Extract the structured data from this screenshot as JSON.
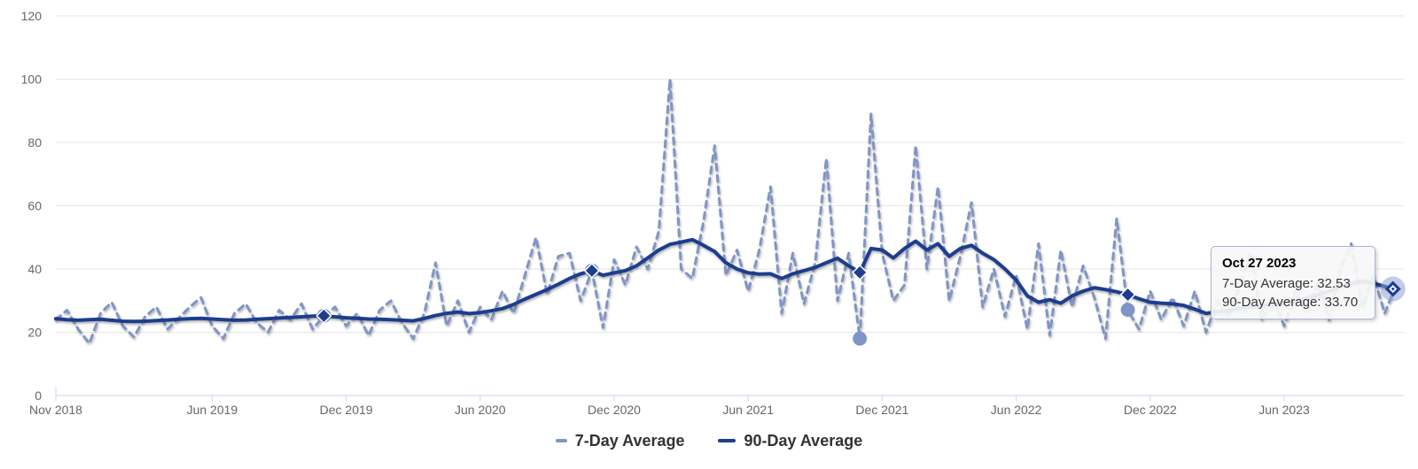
{
  "chart": {
    "tooltip": {
      "title": "Oct 27 2023",
      "line1": "7-Day Average: 32.53",
      "line2": "90-Day Average: 33.70"
    },
    "legend": [
      {
        "label": "7-Day Average",
        "color": "#8095c7",
        "dash": "short"
      },
      {
        "label": "90-Day Average",
        "color": "#1f3d8f",
        "dash": "solid"
      }
    ],
    "colors": {
      "series_7day": "#8095c7",
      "series_90day": "#1f3d8f",
      "gridline": "#e6e6e6",
      "axis_line": "#ccd6eb",
      "tick_label": "#666666",
      "legend_text": "#333333",
      "hover_halo": "#8ea2d2"
    }
  },
  "chart_data": {
    "type": "line",
    "title": "",
    "xlabel": "",
    "ylabel": "",
    "grid": true,
    "legend_position": "bottom-center",
    "ylim": [
      0,
      120
    ],
    "y_ticks": [
      0,
      20,
      40,
      60,
      80,
      100,
      120
    ],
    "x_unit": "months since Nov 2018",
    "x_ticks": [
      {
        "month": 0,
        "label": "Nov 2018"
      },
      {
        "month": 7,
        "label": "Jun 2019"
      },
      {
        "month": 13,
        "label": "Dec 2019"
      },
      {
        "month": 19,
        "label": "Jun 2020"
      },
      {
        "month": 25,
        "label": "Dec 2020"
      },
      {
        "month": 31,
        "label": "Jun 2021"
      },
      {
        "month": 37,
        "label": "Dec 2021"
      },
      {
        "month": 43,
        "label": "Jun 2022"
      },
      {
        "month": 49,
        "label": "Dec 2022"
      },
      {
        "month": 55,
        "label": "Jun 2023"
      }
    ],
    "series": [
      {
        "name": "7-Day Average",
        "style": "dashed",
        "color": "#8095c7",
        "x_start": 0,
        "x_step": 0.5,
        "values": [
          24,
          27,
          21,
          16.5,
          26,
          29.5,
          22,
          18.5,
          25,
          28,
          21,
          24.5,
          28,
          31,
          22,
          18,
          26,
          29,
          23,
          20,
          27,
          24,
          29,
          21,
          25.2,
          28,
          22,
          26,
          19,
          27,
          30,
          23,
          18,
          26,
          42,
          22,
          30,
          20,
          28,
          24,
          33,
          26,
          38,
          50,
          32,
          44,
          45,
          30,
          39.5,
          21.5,
          43,
          35,
          47,
          40,
          52,
          100,
          40,
          37,
          55,
          79,
          38,
          46,
          33,
          46,
          66,
          26,
          45,
          29,
          42,
          75,
          30,
          45,
          18,
          89,
          45,
          30,
          35,
          79,
          40,
          66,
          30,
          44,
          61,
          28,
          40,
          25,
          38,
          21,
          48,
          19,
          46,
          28,
          41,
          31,
          18,
          56,
          27,
          21,
          33,
          24,
          31,
          22,
          33,
          20,
          30,
          25,
          35,
          45,
          24,
          31,
          22,
          33,
          26,
          36,
          24,
          40,
          48,
          28,
          38,
          26
        ],
        "end_point": [
          59.87,
          32.53
        ]
      },
      {
        "name": "90-Day Average",
        "style": "solid",
        "color": "#1f3d8f",
        "x_start": 0,
        "x_step": 0.5,
        "values": [
          24.3,
          24.0,
          23.8,
          24.0,
          24.1,
          23.8,
          23.5,
          23.4,
          23.5,
          23.7,
          23.9,
          24.1,
          24.3,
          24.4,
          24.2,
          24.0,
          23.8,
          23.9,
          24.1,
          24.3,
          24.5,
          24.7,
          24.9,
          25.1,
          25.2,
          24.9,
          24.6,
          24.4,
          24.2,
          24.1,
          24.0,
          23.8,
          23.6,
          24.4,
          25.3,
          26.0,
          26.4,
          25.9,
          26.2,
          26.8,
          27.5,
          28.8,
          30.5,
          32.0,
          33.5,
          35.2,
          37.0,
          38.5,
          39.5,
          38.0,
          38.8,
          39.5,
          41.0,
          43.5,
          46.0,
          47.8,
          48.5,
          49.3,
          47.5,
          45.5,
          42.0,
          40.0,
          38.8,
          38.4,
          38.5,
          37.0,
          38.5,
          39.5,
          40.5,
          42.0,
          43.4,
          41.0,
          38.9,
          46.5,
          46.0,
          43.5,
          46.5,
          48.8,
          46.0,
          48.0,
          44.0,
          46.5,
          47.5,
          45.0,
          43.0,
          40.0,
          36.5,
          31.5,
          29.5,
          30.3,
          29.2,
          31.5,
          33.0,
          34.1,
          33.5,
          32.8,
          31.9,
          30.6,
          29.5,
          29.2,
          29.0,
          28.5,
          27.3,
          26.0,
          26.5,
          27.0,
          27.5,
          28.0,
          28.5,
          28.8,
          29.2,
          30.0,
          30.8,
          31.8,
          33.0,
          34.5,
          35.5,
          36.2,
          35.5,
          34.5
        ],
        "end_point": [
          59.87,
          33.7
        ]
      }
    ],
    "markers": [
      {
        "month": 12,
        "label": "Nov 2019",
        "avg7_circle": 25.2,
        "avg90_diamond": 25.2
      },
      {
        "month": 24,
        "label": "Nov 2020",
        "avg7_circle": 39.5,
        "avg90_diamond": 39.5
      },
      {
        "month": 36,
        "label": "Nov 2021",
        "avg7_circle": 18.0,
        "avg90_diamond": 38.9
      },
      {
        "month": 48,
        "label": "Nov 2022",
        "avg7_circle": 27.1,
        "avg90_diamond": 31.9
      }
    ],
    "hover_point": {
      "month": 59.87,
      "label": "Oct 27 2023",
      "avg7": 32.53,
      "avg90": 33.7
    }
  }
}
